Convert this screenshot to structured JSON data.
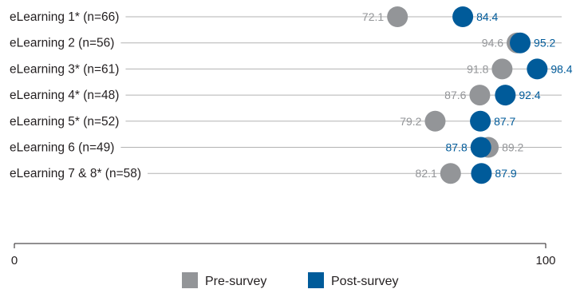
{
  "chart_data": {
    "type": "dot",
    "categories": [
      "eLearning 1* (n=66)",
      "eLearning 2 (n=56)",
      "eLearning 3* (n=61)",
      "eLearning 4* (n=48)",
      "eLearning 5* (n=52)",
      "eLearning 6 (n=49)",
      "eLearning 7 & 8* (n=58)"
    ],
    "series": [
      {
        "name": "Pre-survey",
        "color": "#939598",
        "values": [
          72.1,
          94.6,
          91.8,
          87.6,
          79.2,
          89.2,
          82.1
        ]
      },
      {
        "name": "Post-survey",
        "color": "#005b9a",
        "values": [
          84.4,
          95.2,
          98.4,
          92.4,
          87.7,
          87.8,
          87.9
        ]
      }
    ],
    "xlim": [
      0,
      100
    ],
    "x_ticks": [
      "0",
      "100"
    ],
    "legend": {
      "position": "bottom"
    },
    "grid": true
  }
}
